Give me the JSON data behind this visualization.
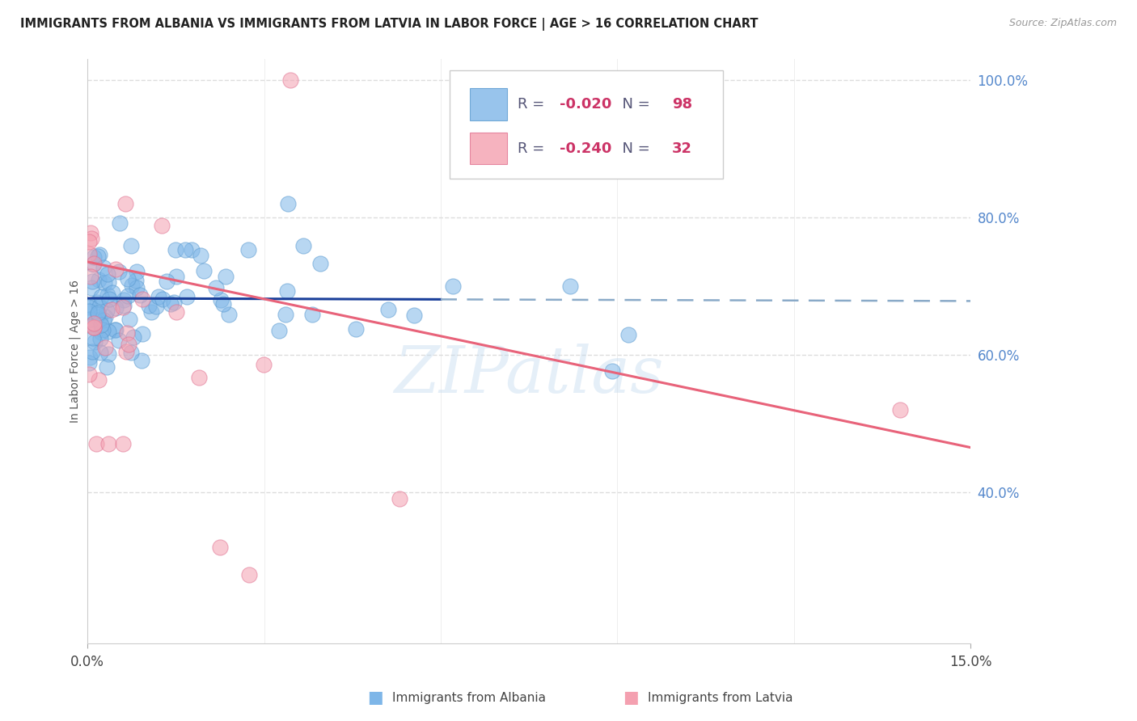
{
  "title": "IMMIGRANTS FROM ALBANIA VS IMMIGRANTS FROM LATVIA IN LABOR FORCE | AGE > 16 CORRELATION CHART",
  "source": "Source: ZipAtlas.com",
  "ylabel": "In Labor Force | Age > 16",
  "right_yticks": [
    100.0,
    80.0,
    60.0,
    40.0
  ],
  "xlim": [
    0.0,
    15.0
  ],
  "ylim": [
    18.0,
    103.0
  ],
  "albania_R": -0.02,
  "albania_N": 98,
  "latvia_R": -0.24,
  "latvia_N": 32,
  "albania_color": "#7EB6E8",
  "albania_edge_color": "#5A9AD0",
  "latvia_color": "#F4A0B0",
  "latvia_edge_color": "#E07090",
  "albania_line_color": "#1A3F9A",
  "albania_line_dash_color": "#8AAAC8",
  "latvia_line_color": "#E8637A",
  "watermark": "ZIPatlas",
  "watermark_color": "#C0D8EE",
  "legend_label_albania": "Immigrants from Albania",
  "legend_label_latvia": "Immigrants from Latvia",
  "legend_R_color": "#CC3366",
  "legend_N_color": "#CC3366",
  "legend_text_color": "#555577",
  "right_axis_color": "#5588CC",
  "grid_color": "#DDDDDD",
  "title_fontsize": 10.5,
  "source_fontsize": 9,
  "tick_fontsize": 12,
  "ylabel_fontsize": 10,
  "albania_line_y0": 68.2,
  "albania_line_y1": 67.8,
  "albania_solid_x_end": 6.0,
  "latvia_line_y0": 73.5,
  "latvia_line_y1": 46.5
}
